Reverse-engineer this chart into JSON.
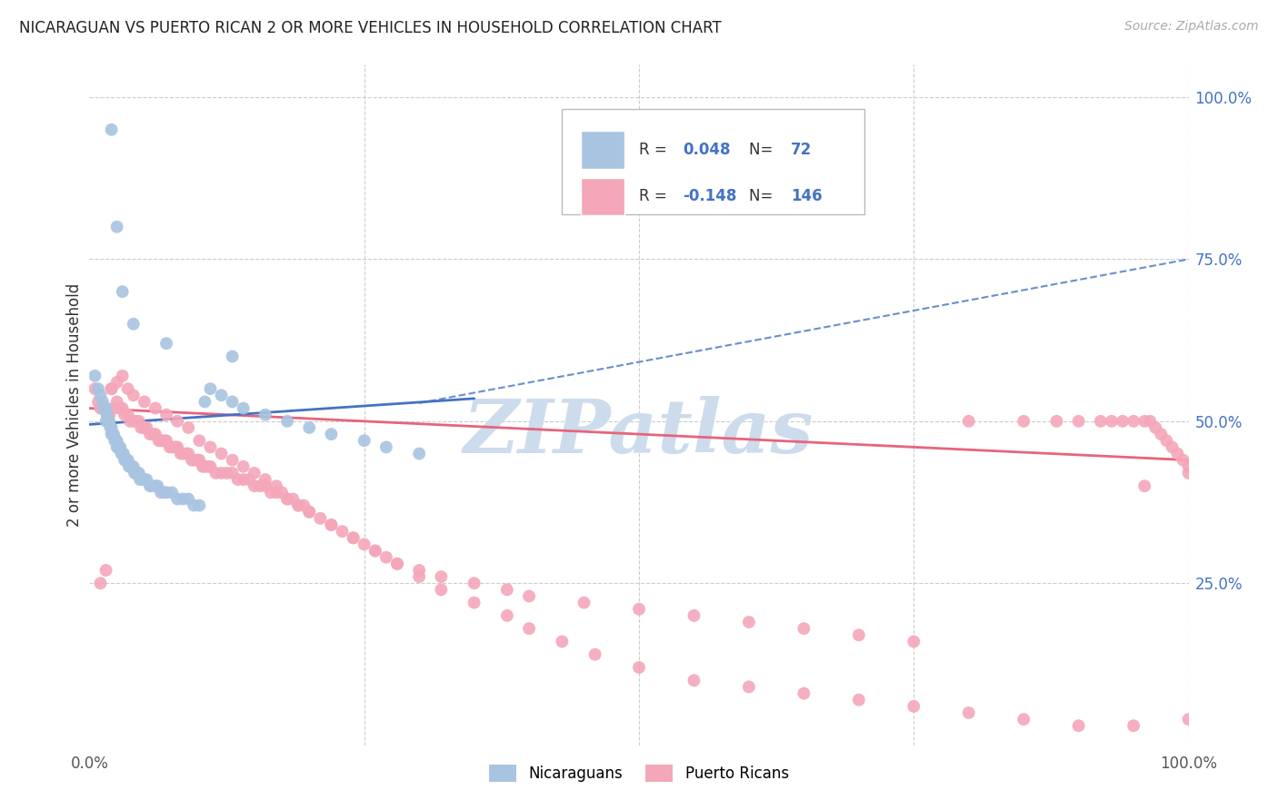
{
  "title": "NICARAGUAN VS PUERTO RICAN 2 OR MORE VEHICLES IN HOUSEHOLD CORRELATION CHART",
  "source": "Source: ZipAtlas.com",
  "ylabel": "2 or more Vehicles in Household",
  "xlim": [
    0,
    1.0
  ],
  "ylim": [
    0,
    1.05
  ],
  "ytick_positions": [
    0.25,
    0.5,
    0.75,
    1.0
  ],
  "xtick_positions": [
    0.0,
    0.25,
    0.5,
    0.75,
    1.0
  ],
  "blue_R": 0.048,
  "blue_N": 72,
  "pink_R": -0.148,
  "pink_N": 146,
  "blue_color": "#a8c4e0",
  "pink_color": "#f4a7b9",
  "blue_line_color": "#4472c4",
  "pink_line_color": "#e8647a",
  "watermark_color": "#ccdcec",
  "background_color": "#ffffff",
  "grid_color": "#cccccc",
  "blue_x": [
    0.005,
    0.008,
    0.01,
    0.012,
    0.013,
    0.015,
    0.015,
    0.016,
    0.017,
    0.018,
    0.019,
    0.02,
    0.02,
    0.021,
    0.022,
    0.023,
    0.024,
    0.025,
    0.025,
    0.026,
    0.027,
    0.028,
    0.029,
    0.03,
    0.031,
    0.032,
    0.033,
    0.034,
    0.035,
    0.036,
    0.037,
    0.038,
    0.04,
    0.041,
    0.042,
    0.043,
    0.045,
    0.046,
    0.048,
    0.05,
    0.052,
    0.055,
    0.057,
    0.06,
    0.062,
    0.065,
    0.068,
    0.07,
    0.075,
    0.08,
    0.085,
    0.09,
    0.095,
    0.1,
    0.105,
    0.11,
    0.12,
    0.13,
    0.14,
    0.16,
    0.18,
    0.2,
    0.22,
    0.25,
    0.27,
    0.3,
    0.13,
    0.07,
    0.04,
    0.03,
    0.025,
    0.02
  ],
  "blue_y": [
    0.57,
    0.55,
    0.54,
    0.53,
    0.52,
    0.52,
    0.5,
    0.51,
    0.5,
    0.5,
    0.49,
    0.49,
    0.48,
    0.48,
    0.48,
    0.47,
    0.47,
    0.47,
    0.46,
    0.46,
    0.46,
    0.46,
    0.45,
    0.45,
    0.45,
    0.44,
    0.44,
    0.44,
    0.44,
    0.43,
    0.43,
    0.43,
    0.43,
    0.42,
    0.42,
    0.42,
    0.42,
    0.41,
    0.41,
    0.41,
    0.41,
    0.4,
    0.4,
    0.4,
    0.4,
    0.39,
    0.39,
    0.39,
    0.39,
    0.38,
    0.38,
    0.38,
    0.37,
    0.37,
    0.53,
    0.55,
    0.54,
    0.53,
    0.52,
    0.51,
    0.5,
    0.49,
    0.48,
    0.47,
    0.46,
    0.45,
    0.6,
    0.62,
    0.65,
    0.7,
    0.8,
    0.95
  ],
  "pink_x": [
    0.005,
    0.008,
    0.01,
    0.012,
    0.015,
    0.016,
    0.018,
    0.02,
    0.022,
    0.025,
    0.027,
    0.03,
    0.032,
    0.035,
    0.037,
    0.04,
    0.042,
    0.045,
    0.047,
    0.05,
    0.052,
    0.055,
    0.058,
    0.06,
    0.063,
    0.065,
    0.068,
    0.07,
    0.073,
    0.075,
    0.078,
    0.08,
    0.083,
    0.085,
    0.088,
    0.09,
    0.093,
    0.095,
    0.098,
    0.1,
    0.103,
    0.105,
    0.108,
    0.11,
    0.115,
    0.12,
    0.125,
    0.13,
    0.135,
    0.14,
    0.145,
    0.15,
    0.155,
    0.16,
    0.165,
    0.17,
    0.175,
    0.18,
    0.185,
    0.19,
    0.195,
    0.2,
    0.21,
    0.22,
    0.23,
    0.24,
    0.25,
    0.26,
    0.27,
    0.28,
    0.3,
    0.32,
    0.35,
    0.38,
    0.4,
    0.45,
    0.5,
    0.55,
    0.6,
    0.65,
    0.7,
    0.75,
    0.8,
    0.85,
    0.88,
    0.9,
    0.92,
    0.93,
    0.94,
    0.95,
    0.96,
    0.965,
    0.97,
    0.975,
    0.98,
    0.985,
    0.99,
    0.995,
    1.0,
    1.0,
    0.01,
    0.015,
    0.02,
    0.025,
    0.03,
    0.035,
    0.04,
    0.05,
    0.06,
    0.07,
    0.08,
    0.09,
    0.1,
    0.11,
    0.12,
    0.13,
    0.14,
    0.15,
    0.16,
    0.17,
    0.18,
    0.19,
    0.2,
    0.22,
    0.24,
    0.26,
    0.28,
    0.3,
    0.32,
    0.35,
    0.38,
    0.4,
    0.43,
    0.46,
    0.5,
    0.55,
    0.6,
    0.65,
    0.7,
    0.75,
    0.8,
    0.85,
    0.9,
    0.95,
    1.0,
    0.96
  ],
  "pink_y": [
    0.55,
    0.53,
    0.52,
    0.52,
    0.52,
    0.51,
    0.51,
    0.55,
    0.52,
    0.53,
    0.52,
    0.52,
    0.51,
    0.51,
    0.5,
    0.5,
    0.5,
    0.5,
    0.49,
    0.49,
    0.49,
    0.48,
    0.48,
    0.48,
    0.47,
    0.47,
    0.47,
    0.47,
    0.46,
    0.46,
    0.46,
    0.46,
    0.45,
    0.45,
    0.45,
    0.45,
    0.44,
    0.44,
    0.44,
    0.44,
    0.43,
    0.43,
    0.43,
    0.43,
    0.42,
    0.42,
    0.42,
    0.42,
    0.41,
    0.41,
    0.41,
    0.4,
    0.4,
    0.4,
    0.39,
    0.39,
    0.39,
    0.38,
    0.38,
    0.37,
    0.37,
    0.36,
    0.35,
    0.34,
    0.33,
    0.32,
    0.31,
    0.3,
    0.29,
    0.28,
    0.27,
    0.26,
    0.25,
    0.24,
    0.23,
    0.22,
    0.21,
    0.2,
    0.19,
    0.18,
    0.17,
    0.16,
    0.5,
    0.5,
    0.5,
    0.5,
    0.5,
    0.5,
    0.5,
    0.5,
    0.5,
    0.5,
    0.49,
    0.48,
    0.47,
    0.46,
    0.45,
    0.44,
    0.43,
    0.42,
    0.25,
    0.27,
    0.55,
    0.56,
    0.57,
    0.55,
    0.54,
    0.53,
    0.52,
    0.51,
    0.5,
    0.49,
    0.47,
    0.46,
    0.45,
    0.44,
    0.43,
    0.42,
    0.41,
    0.4,
    0.38,
    0.37,
    0.36,
    0.34,
    0.32,
    0.3,
    0.28,
    0.26,
    0.24,
    0.22,
    0.2,
    0.18,
    0.16,
    0.14,
    0.12,
    0.1,
    0.09,
    0.08,
    0.07,
    0.06,
    0.05,
    0.04,
    0.03,
    0.03,
    0.04,
    0.4
  ]
}
